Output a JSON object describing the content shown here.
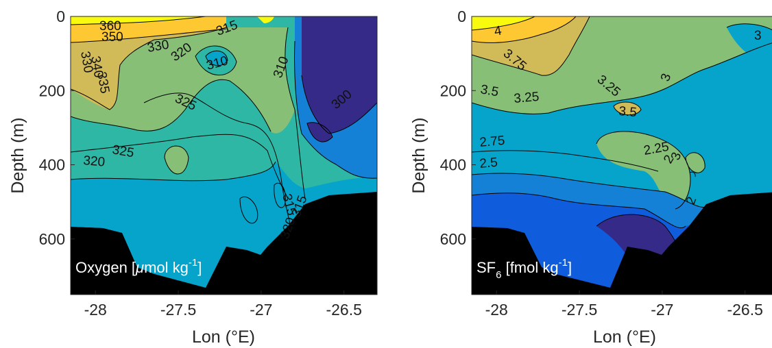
{
  "chart_data": [
    {
      "type": "contour",
      "variable": "oxygen",
      "annotation": {
        "main": "Oxygen [",
        "mu": "μ",
        "mid": "mol kg",
        "sup": "-1",
        "end": "]"
      },
      "xlabel": "Lon (°E)",
      "ylabel": "Depth (m)",
      "xlim": [
        -28.15,
        -26.3
      ],
      "ylim": [
        750,
        0
      ],
      "xticks": [
        -28,
        -27.5,
        -27,
        -26.5
      ],
      "xtick_labels": [
        "-28",
        "-27.5",
        "-27",
        "-26.5"
      ],
      "yticks": [
        0,
        200,
        400,
        600
      ],
      "ytick_labels": [
        "0",
        "200",
        "400",
        "600"
      ],
      "levels": [
        300,
        305,
        310,
        315,
        320,
        325,
        330,
        335,
        340,
        350,
        360
      ],
      "contour_labels": [
        "360",
        "350",
        "340",
        "335",
        "330",
        "330",
        "320",
        "315",
        "310",
        "310",
        "325",
        "325",
        "320",
        "300",
        "315",
        "320",
        "315"
      ],
      "bathymetry_color": "#000000",
      "colormap": [
        "#352a87",
        "#0f5cdd",
        "#1481d6",
        "#06a4ca",
        "#2eb7a4",
        "#87bf77",
        "#d1bb59",
        "#fec832",
        "#f9fb0e"
      ]
    },
    {
      "type": "contour",
      "variable": "SF6",
      "annotation": {
        "main": "SF",
        "sub": "6",
        "mid": " [fmol kg",
        "sup": "-1",
        "end": "]"
      },
      "xlabel": "Lon (°E)",
      "ylabel": "Depth (m)",
      "xlim": [
        -28.15,
        -26.3
      ],
      "ylim": [
        750,
        0
      ],
      "xticks": [
        -28,
        -27.5,
        -27,
        -26.5
      ],
      "xtick_labels": [
        "-28",
        "-27.5",
        "-27",
        "-26.5"
      ],
      "yticks": [
        0,
        200,
        400,
        600
      ],
      "ytick_labels": [
        "0",
        "200",
        "400",
        "600"
      ],
      "levels": [
        2,
        2.25,
        2.5,
        2.75,
        3,
        3.25,
        3.5,
        3.75,
        4
      ],
      "contour_labels": [
        "4",
        "3.75",
        "3.5",
        "3.25",
        "3.25",
        "3.5",
        "2.75",
        "2.5",
        "3",
        "3",
        "2.25",
        "2",
        "2",
        "3"
      ],
      "bathymetry_color": "#000000",
      "colormap": [
        "#352a87",
        "#0f5cdd",
        "#1481d6",
        "#06a4ca",
        "#2eb7a4",
        "#87bf77",
        "#d1bb59",
        "#fec832",
        "#f9fb0e"
      ]
    }
  ]
}
